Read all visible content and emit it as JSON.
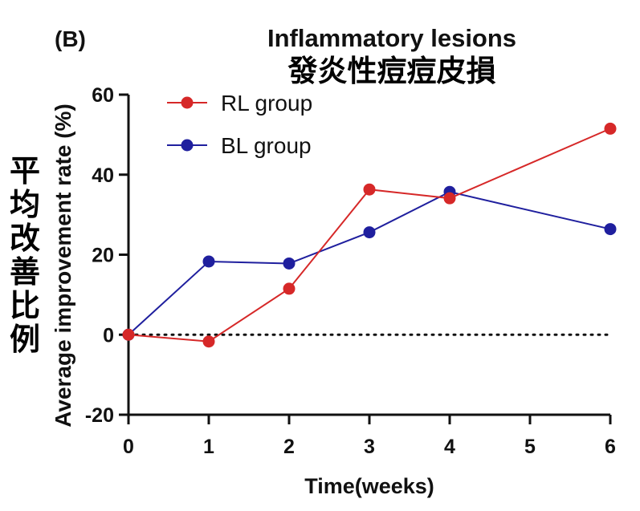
{
  "panel_label": "(B)",
  "chart_data": {
    "type": "line",
    "title": "Inflammatory lesions",
    "subtitle": "發炎性痘痘皮損",
    "xlabel": "Time(weeks)",
    "ylabel": "Average improvement  rate (%)",
    "ylabel_cjk": [
      "平",
      "均",
      "改",
      "善",
      "比",
      "例"
    ],
    "x_ticks": [
      "0",
      "1",
      "2",
      "3",
      "4",
      "5",
      "6"
    ],
    "y_ticks": [
      "-20",
      "0",
      "20",
      "40",
      "60"
    ],
    "xlim": [
      0,
      6
    ],
    "ylim": [
      -20,
      60
    ],
    "reference_line_y": 0,
    "legend_position": "top-left",
    "series": [
      {
        "name": "RL group",
        "color": "#d62828",
        "x": [
          0,
          1,
          2,
          3,
          4,
          6
        ],
        "y": [
          0,
          -1.7,
          11.5,
          36.3,
          34.1,
          51.5
        ]
      },
      {
        "name": "BL group",
        "color": "#1f1f9e",
        "x": [
          0,
          1,
          2,
          3,
          4,
          6
        ],
        "y": [
          0,
          18.3,
          17.8,
          25.6,
          35.7,
          26.4
        ]
      }
    ]
  }
}
